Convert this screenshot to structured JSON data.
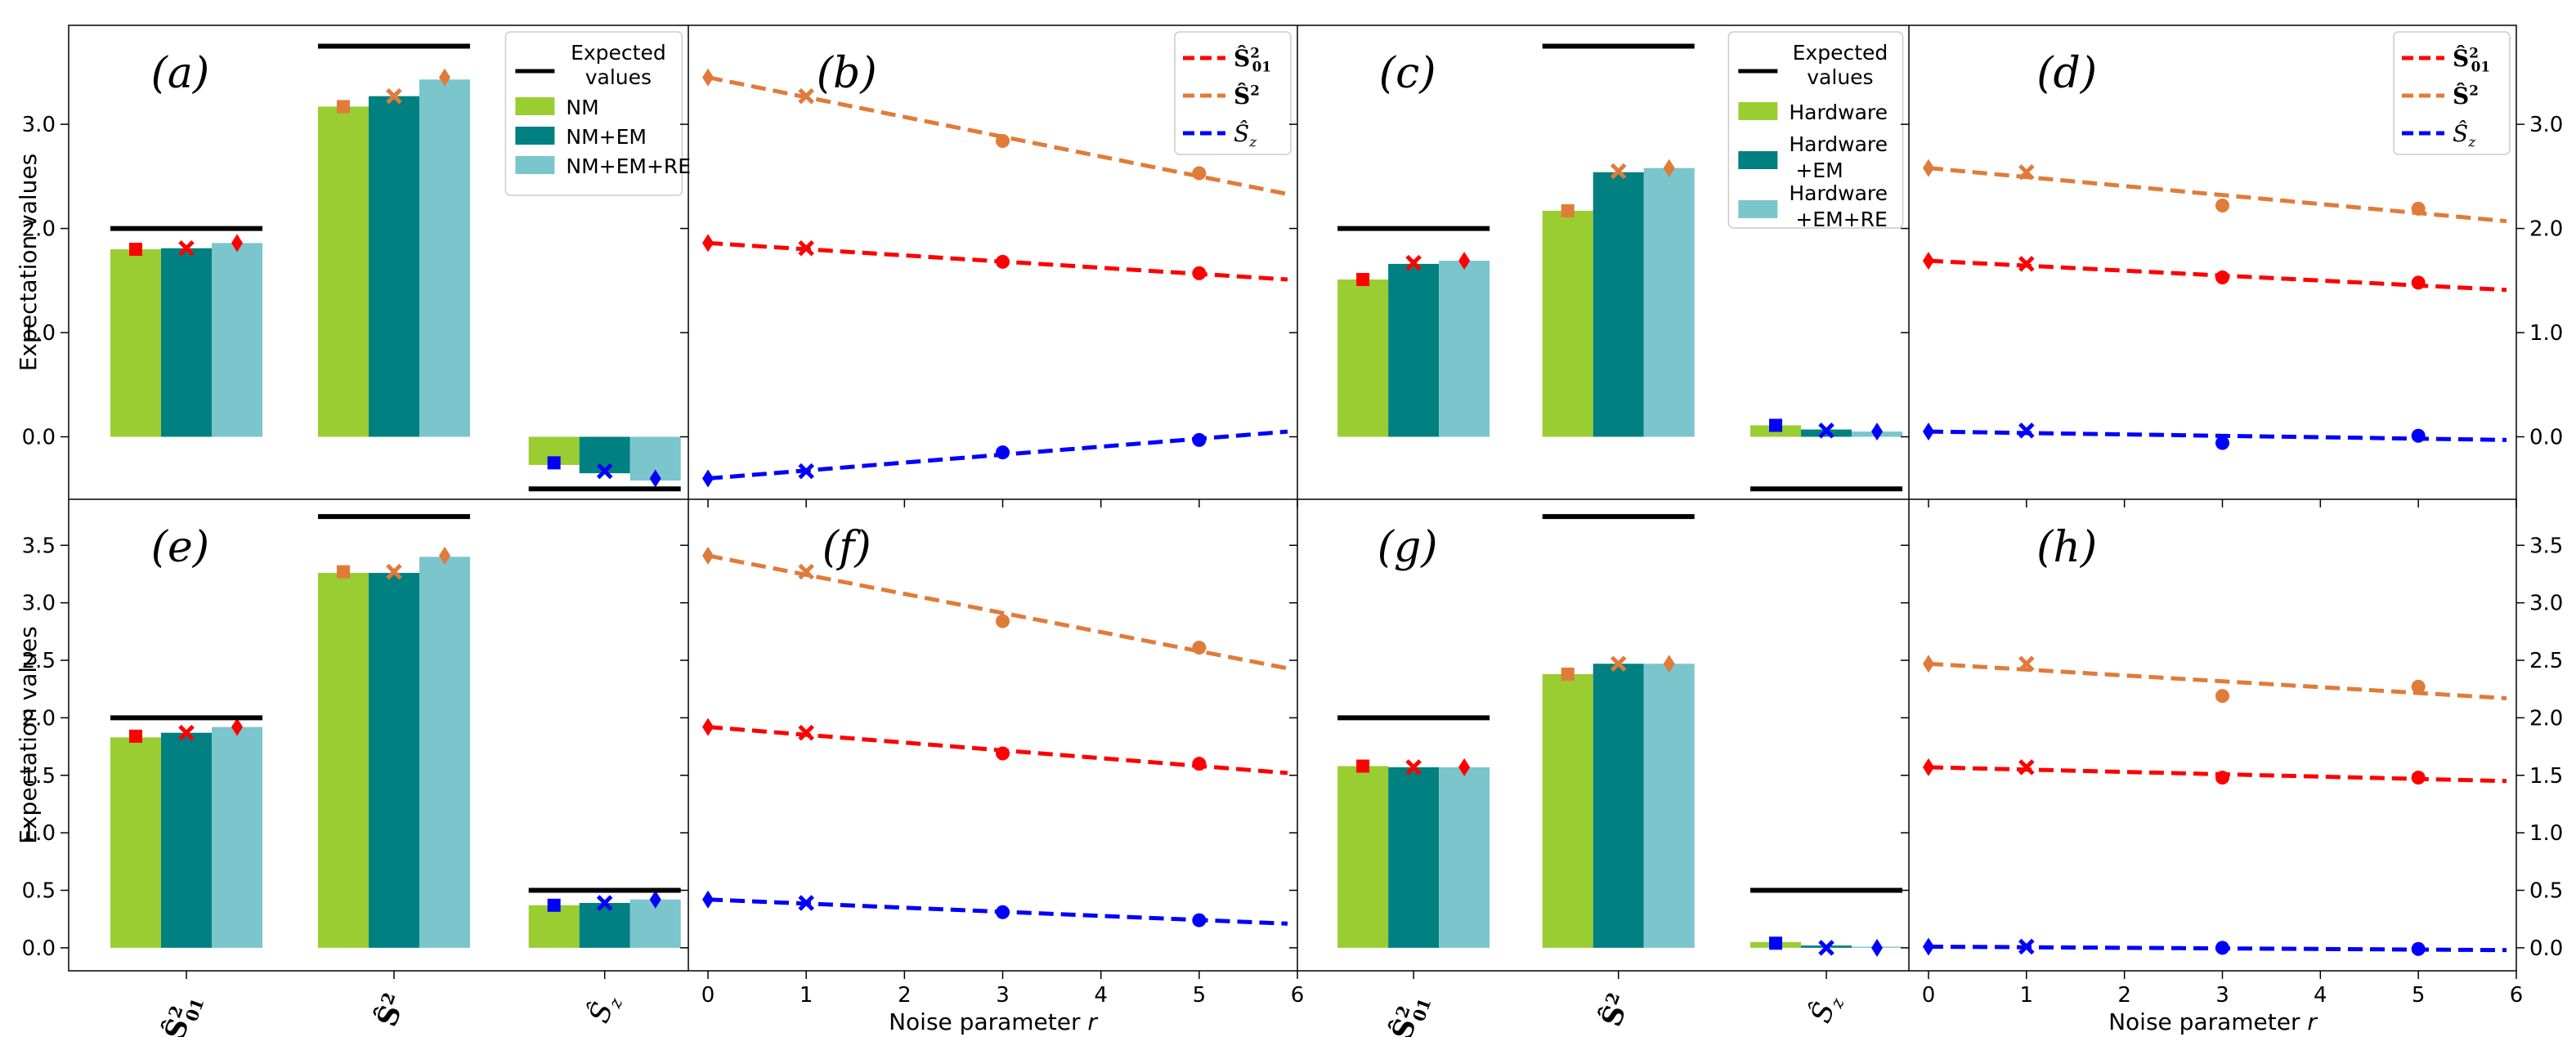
{
  "colors": {
    "green": "#9acd32",
    "teal": "#008080",
    "lightblue": "#7bc5cd",
    "red": "#ff0000",
    "orange": "#e07b39",
    "blue": "#0000ff",
    "black": "#000000"
  },
  "chart_data": [
    {
      "id": "a",
      "type": "bar",
      "panel_label": "(a)",
      "categories": [
        "Ŝ²₀₁",
        "Ŝ²",
        "Ŝz"
      ],
      "series": [
        {
          "name": "NM",
          "values": [
            1.8,
            3.17,
            -0.27
          ]
        },
        {
          "name": "NM+EM",
          "values": [
            1.81,
            3.27,
            -0.35
          ]
        },
        {
          "name": "NM+EM+RE",
          "values": [
            1.86,
            3.43,
            -0.42
          ]
        }
      ],
      "expected": [
        2.0,
        3.75,
        -0.5
      ],
      "markers": [
        [
          1.8,
          1.81,
          1.86
        ],
        [
          3.17,
          3.27,
          3.45
        ],
        [
          -0.25,
          -0.33,
          -0.4
        ]
      ],
      "ylim": [
        -0.6,
        3.95
      ],
      "yticks": [
        "0.0",
        "1.0",
        "2.0",
        "3.0"
      ],
      "ytick_values": [
        0,
        1,
        2,
        3
      ],
      "ylabel": "Expectation values",
      "legend": {
        "expected": "Expected values",
        "labels": [
          "NM",
          "NM+EM",
          "NM+EM+RE"
        ]
      }
    },
    {
      "id": "b",
      "type": "line",
      "panel_label": "(b)",
      "x_points": [
        0,
        1,
        3,
        5
      ],
      "series": [
        {
          "name": "Ŝ²₀₁",
          "points": [
            1.86,
            1.81,
            1.68,
            1.57
          ],
          "fit": [
            1.86,
            1.51
          ]
        },
        {
          "name": "Ŝ²",
          "points": [
            3.45,
            3.27,
            2.84,
            2.53
          ],
          "fit": [
            3.45,
            2.33
          ]
        },
        {
          "name": "Ŝz",
          "points": [
            -0.4,
            -0.33,
            -0.15,
            -0.03
          ],
          "fit": [
            -0.4,
            0.05
          ]
        }
      ],
      "xlim": [
        -0.2,
        6.0
      ],
      "ylim": [
        -0.6,
        3.95
      ]
    },
    {
      "id": "c",
      "type": "bar",
      "panel_label": "(c)",
      "categories": [
        "Ŝ²₀₁",
        "Ŝ²",
        "Ŝz"
      ],
      "series": [
        {
          "name": "Hardware",
          "values": [
            1.51,
            2.17,
            0.11
          ]
        },
        {
          "name": "Hardware +EM",
          "values": [
            1.66,
            2.54,
            0.07
          ]
        },
        {
          "name": "Hardware +EM+RE",
          "values": [
            1.69,
            2.58,
            0.05
          ]
        }
      ],
      "expected": [
        2.0,
        3.75,
        -0.5
      ],
      "markers": [
        [
          1.51,
          1.67,
          1.69
        ],
        [
          2.17,
          2.55,
          2.58
        ],
        [
          0.11,
          0.06,
          0.05
        ]
      ],
      "ylim": [
        -0.6,
        3.95
      ],
      "ytick_values": [
        0,
        1,
        2,
        3
      ],
      "legend": {
        "expected": "Expected values",
        "labels": [
          "Hardware",
          "Hardware +EM",
          "Hardware +EM+RE"
        ]
      }
    },
    {
      "id": "d",
      "type": "line",
      "panel_label": "(d)",
      "x_points": [
        0,
        1,
        3,
        5
      ],
      "series": [
        {
          "name": "Ŝ²₀₁",
          "points": [
            1.69,
            1.66,
            1.53,
            1.48
          ],
          "fit": [
            1.69,
            1.41
          ]
        },
        {
          "name": "Ŝ²",
          "points": [
            2.58,
            2.54,
            2.22,
            2.19
          ],
          "fit": [
            2.58,
            2.07
          ]
        },
        {
          "name": "Ŝz",
          "points": [
            0.05,
            0.06,
            -0.06,
            0.01
          ],
          "fit": [
            0.05,
            -0.03
          ]
        }
      ],
      "xlim": [
        -0.2,
        6.0
      ],
      "ylim": [
        -0.6,
        3.95
      ],
      "yticks_right": [
        "0.0",
        "1.0",
        "2.0",
        "3.0"
      ],
      "ytick_values": [
        0,
        1,
        2,
        3
      ]
    },
    {
      "id": "e",
      "type": "bar",
      "panel_label": "(e)",
      "categories": [
        "Ŝ²₀₁",
        "Ŝ²",
        "Ŝz"
      ],
      "series": [
        {
          "name": "NM",
          "values": [
            1.83,
            3.26,
            0.37
          ]
        },
        {
          "name": "NM+EM",
          "values": [
            1.87,
            3.26,
            0.39
          ]
        },
        {
          "name": "NM+EM+RE",
          "values": [
            1.92,
            3.4,
            0.42
          ]
        }
      ],
      "expected": [
        2.0,
        3.75,
        0.5
      ],
      "markers": [
        [
          1.84,
          1.87,
          1.92
        ],
        [
          3.27,
          3.27,
          3.41
        ],
        [
          0.37,
          0.39,
          0.42
        ]
      ],
      "ylim": [
        -0.2,
        3.9
      ],
      "yticks": [
        "0.0",
        "0.5",
        "1.0",
        "1.5",
        "2.0",
        "2.5",
        "3.0",
        "3.5"
      ],
      "ytick_values": [
        0,
        0.5,
        1,
        1.5,
        2,
        2.5,
        3,
        3.5
      ],
      "ylabel": "Expectation values"
    },
    {
      "id": "f",
      "type": "line",
      "panel_label": "(f)",
      "x_points": [
        0,
        1,
        3,
        5
      ],
      "series": [
        {
          "name": "Ŝ²₀₁",
          "points": [
            1.92,
            1.87,
            1.69,
            1.6
          ],
          "fit": [
            1.92,
            1.52
          ]
        },
        {
          "name": "Ŝ²",
          "points": [
            3.41,
            3.27,
            2.84,
            2.61
          ],
          "fit": [
            3.41,
            2.43
          ]
        },
        {
          "name": "Ŝz",
          "points": [
            0.42,
            0.39,
            0.31,
            0.24
          ],
          "fit": [
            0.42,
            0.21
          ]
        }
      ],
      "xlim": [
        -0.2,
        6.0
      ],
      "ylim": [
        -0.2,
        3.9
      ],
      "xlabel": "Noise parameter r",
      "xticks": [
        "0",
        "1",
        "2",
        "3",
        "4",
        "5",
        "6"
      ]
    },
    {
      "id": "g",
      "type": "bar",
      "panel_label": "(g)",
      "categories": [
        "Ŝ²₀₁",
        "Ŝ²",
        "Ŝz"
      ],
      "series": [
        {
          "name": "Hardware",
          "values": [
            1.58,
            2.38,
            0.05
          ]
        },
        {
          "name": "Hardware +EM",
          "values": [
            1.57,
            2.47,
            0.02
          ]
        },
        {
          "name": "Hardware +EM+RE",
          "values": [
            1.57,
            2.47,
            0.01
          ]
        }
      ],
      "expected": [
        2.0,
        3.75,
        0.5
      ],
      "markers": [
        [
          1.58,
          1.57,
          1.57
        ],
        [
          2.38,
          2.47,
          2.47
        ],
        [
          0.04,
          0.0,
          0.0
        ]
      ],
      "ylim": [
        -0.2,
        3.9
      ],
      "ytick_values": [
        0,
        0.5,
        1,
        1.5,
        2,
        2.5,
        3,
        3.5
      ]
    },
    {
      "id": "h",
      "type": "line",
      "panel_label": "(h)",
      "x_points": [
        0,
        1,
        3,
        5
      ],
      "series": [
        {
          "name": "Ŝ²₀₁",
          "points": [
            1.57,
            1.57,
            1.48,
            1.48
          ],
          "fit": [
            1.57,
            1.45
          ]
        },
        {
          "name": "Ŝ²",
          "points": [
            2.47,
            2.47,
            2.19,
            2.27
          ],
          "fit": [
            2.47,
            2.17
          ]
        },
        {
          "name": "Ŝz",
          "points": [
            0.01,
            0.01,
            0.0,
            -0.01
          ],
          "fit": [
            0.01,
            -0.02
          ]
        }
      ],
      "xlim": [
        -0.2,
        6.0
      ],
      "ylim": [
        -0.2,
        3.9
      ],
      "xlabel": "Noise parameter r",
      "xticks": [
        "0",
        "1",
        "2",
        "3",
        "4",
        "5",
        "6"
      ],
      "yticks_right": [
        "0.0",
        "0.5",
        "1.0",
        "1.5",
        "2.0",
        "2.5",
        "3.0",
        "3.5"
      ],
      "ytick_values": [
        0,
        0.5,
        1,
        1.5,
        2,
        2.5,
        3,
        3.5
      ]
    }
  ]
}
